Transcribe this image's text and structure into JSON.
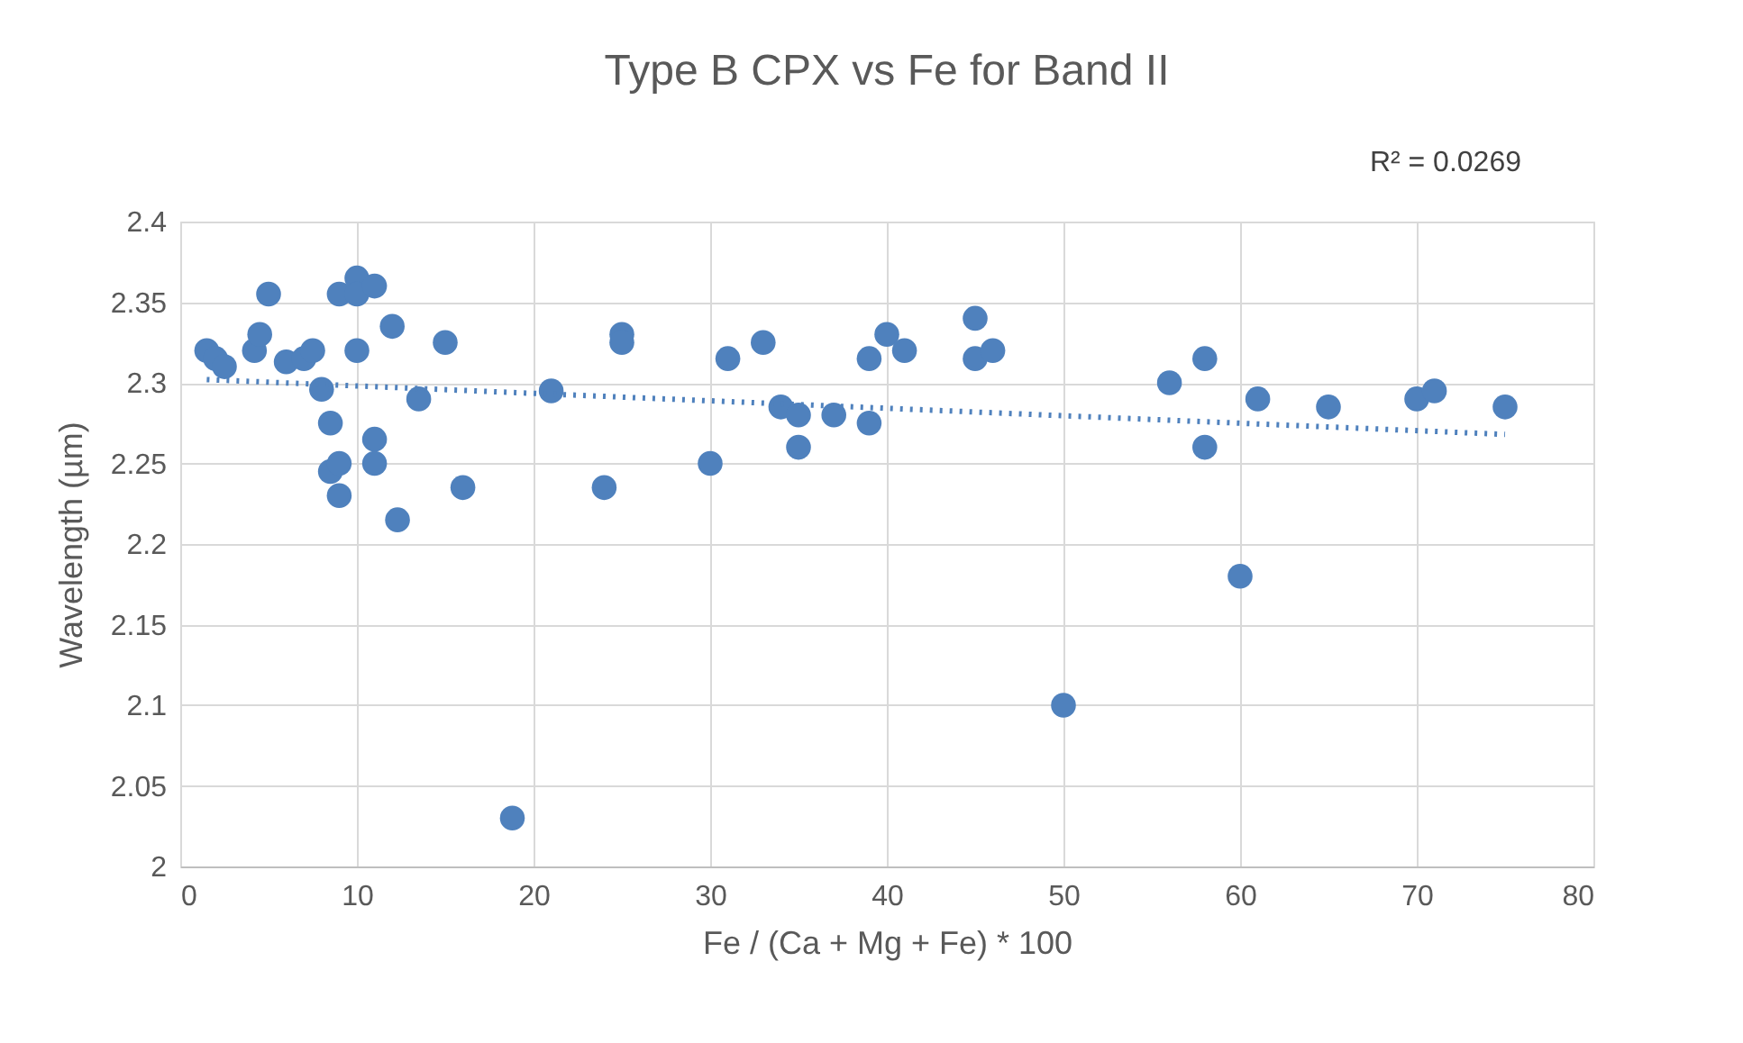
{
  "chart_data": {
    "type": "scatter",
    "title": "Type B CPX vs Fe for Band II",
    "xlabel": "Fe / (Ca + Mg + Fe) * 100",
    "ylabel": "Wavelength (µm)",
    "annotations": [
      "R² = 0.0269"
    ],
    "xlim": [
      0,
      80
    ],
    "xticks": [
      0,
      10,
      20,
      30,
      40,
      50,
      60,
      70,
      80
    ],
    "ylim": [
      2,
      2.4
    ],
    "yticks": [
      {
        "value": 2,
        "label": "2"
      },
      2.05,
      {
        "value": 2.1,
        "label": "2.1"
      },
      2.15,
      {
        "value": 2.2,
        "label": "2.2"
      },
      2.25,
      {
        "value": 2.3,
        "label": "2.3"
      },
      2.35,
      {
        "value": 2.4,
        "label": "2.4"
      }
    ],
    "grid": true,
    "series": [
      {
        "color": "#4f81bd",
        "marker": "circle",
        "x": [
          1.5,
          2,
          2.5,
          4.2,
          4.5,
          5,
          6,
          7,
          7.5,
          8,
          8.5,
          8.5,
          9,
          9,
          9,
          10,
          10,
          10,
          11,
          11,
          11,
          12,
          12.3,
          13.5,
          15,
          16,
          18.8,
          21,
          24,
          25,
          25,
          30,
          31,
          33,
          34,
          35,
          35,
          37,
          39,
          39,
          40,
          41,
          45,
          45,
          46,
          50,
          56,
          58,
          58,
          60,
          61,
          65,
          70,
          71,
          75
        ],
        "values": [
          2.32,
          2.315,
          2.31,
          2.32,
          2.33,
          2.355,
          2.313,
          2.315,
          2.32,
          2.296,
          2.275,
          2.245,
          2.25,
          2.23,
          2.355,
          2.365,
          2.355,
          2.32,
          2.36,
          2.265,
          2.25,
          2.335,
          2.215,
          2.29,
          2.325,
          2.235,
          2.03,
          2.295,
          2.235,
          2.33,
          2.325,
          2.25,
          2.315,
          2.325,
          2.285,
          2.28,
          2.26,
          2.28,
          2.315,
          2.275,
          2.33,
          2.32,
          2.34,
          2.315,
          2.32,
          2.1,
          2.3,
          2.315,
          2.26,
          2.18,
          2.29,
          2.285,
          2.29,
          2.295,
          2.285
        ]
      },
      {
        "type": "line",
        "color": "#4f81bd",
        "line_style": "dotted",
        "x": [
          1.5,
          75
        ],
        "values": [
          2.302,
          2.268
        ]
      }
    ]
  }
}
